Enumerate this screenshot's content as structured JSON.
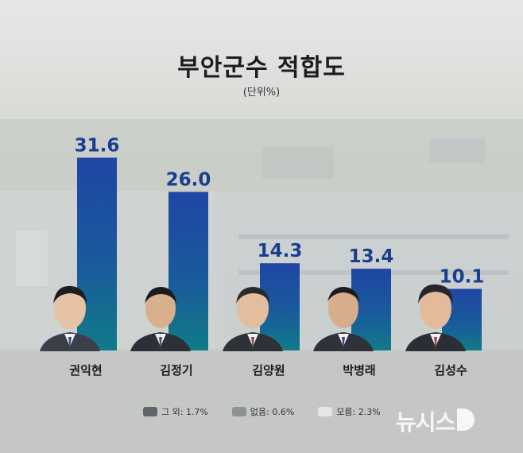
{
  "chart_data": {
    "type": "bar",
    "title": "부안군수 적합도",
    "subtitle": "(단위%)",
    "categories": [
      "권익현",
      "김정기",
      "김양원",
      "박병래",
      "김성수"
    ],
    "values": [
      31.6,
      26.0,
      14.3,
      13.4,
      10.1
    ],
    "value_labels": [
      "31.6",
      "26.0",
      "14.3",
      "13.4",
      "10.1"
    ],
    "ylim": [
      0,
      34
    ],
    "grid": false,
    "legend": [
      {
        "label": "그 외: 1.7%",
        "color": "#5f6469"
      },
      {
        "label": "없음: 0.6%",
        "color": "#8e9296"
      },
      {
        "label": "모름: 2.3%",
        "color": "#e3e5e8"
      }
    ],
    "colors": {
      "bar_top": "#1e46a4",
      "bar_bottom": "#10758a",
      "value_text": "#1a3d8f"
    }
  },
  "watermark": "뉴시스"
}
